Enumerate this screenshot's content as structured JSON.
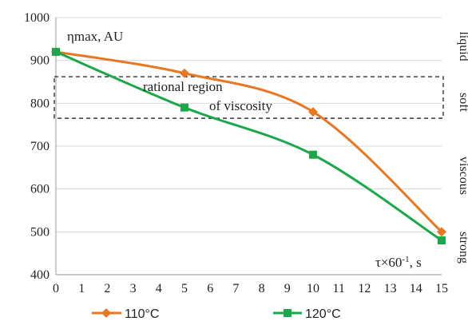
{
  "chart_data": {
    "type": "line",
    "ylabel": "ηmax, AU",
    "xlabel": "τ×60",
    "xlabel_sup": "-1",
    "xlabel_unit": ", s",
    "xlim": [
      0,
      15
    ],
    "ylim": [
      400,
      1000
    ],
    "x_ticks": [
      0,
      1,
      2,
      3,
      4,
      5,
      6,
      7,
      8,
      9,
      10,
      11,
      12,
      13,
      14,
      15
    ],
    "y_ticks": [
      400,
      500,
      600,
      700,
      800,
      900,
      1000
    ],
    "grid": "horizontal",
    "series": [
      {
        "name": "110°C",
        "color": "#e87722",
        "marker": "diamond",
        "x": [
          0,
          5,
          10,
          15
        ],
        "y": [
          920,
          870,
          780,
          500
        ]
      },
      {
        "name": "120°C",
        "color": "#1aa84a",
        "marker": "square",
        "x": [
          0,
          5,
          10,
          15
        ],
        "y": [
          920,
          790,
          680,
          480
        ]
      }
    ],
    "region": {
      "label_line1": "rational region",
      "label_line2": "of viscosity",
      "y_low": 765,
      "y_high": 862
    },
    "zones": [
      "liquid",
      "soft",
      "viscous",
      "strong"
    ],
    "legend_position": "bottom"
  }
}
